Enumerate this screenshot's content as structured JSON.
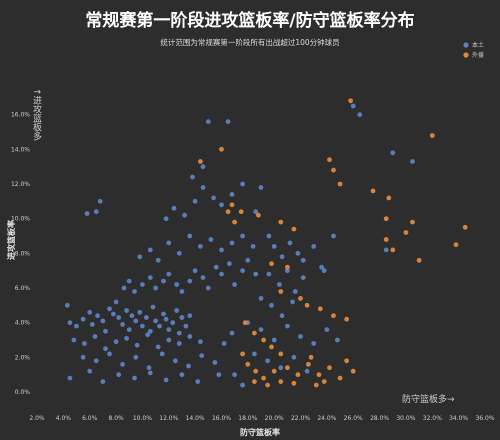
{
  "chart_data": {
    "type": "scatter",
    "title": "常规赛第一阶段进攻篮板率/防守篮板率分布",
    "subtitle": "统计范围为常规赛第一阶段所有出战超过100分钟球员",
    "xlabel": "防守篮板率",
    "ylabel": "进攻篮板率",
    "xlim": [
      0.02,
      0.36
    ],
    "ylim": [
      0,
      0.18
    ],
    "x_ticks": [
      "2.0%",
      "4.0%",
      "6.0%",
      "8.0%",
      "10.0%",
      "12.0%",
      "14.0%",
      "16.0%",
      "18.0%",
      "20.0%",
      "22.0%",
      "24.0%",
      "26.0%",
      "28.0%",
      "30.0%",
      "32.0%",
      "34.0%",
      "36.0%"
    ],
    "y_ticks": [
      "0.0%",
      "2.0%",
      "4.0%",
      "6.0%",
      "8.0%",
      "10.0%",
      "12.0%",
      "14.0%",
      "16.0%"
    ],
    "legend": {
      "position": "top-right"
    },
    "annotations": {
      "y_arrow": "↑进攻篮板多",
      "x_arrow": "防守篮板多→"
    },
    "series": [
      {
        "name": "本土",
        "color": "#5b82c0",
        "points": [
          [
            0.043,
            0.05
          ],
          [
            0.058,
            0.103
          ],
          [
            0.065,
            0.104
          ],
          [
            0.068,
            0.11
          ],
          [
            0.045,
            0.04
          ],
          [
            0.05,
            0.038
          ],
          [
            0.055,
            0.042
          ],
          [
            0.06,
            0.046
          ],
          [
            0.062,
            0.039
          ],
          [
            0.066,
            0.044
          ],
          [
            0.07,
            0.041
          ],
          [
            0.072,
            0.035
          ],
          [
            0.075,
            0.048
          ],
          [
            0.078,
            0.045
          ],
          [
            0.08,
            0.052
          ],
          [
            0.082,
            0.043
          ],
          [
            0.085,
            0.039
          ],
          [
            0.088,
            0.047
          ],
          [
            0.09,
            0.036
          ],
          [
            0.092,
            0.044
          ],
          [
            0.095,
            0.041
          ],
          [
            0.098,
            0.046
          ],
          [
            0.1,
            0.038
          ],
          [
            0.103,
            0.043
          ],
          [
            0.106,
            0.035
          ],
          [
            0.108,
            0.049
          ],
          [
            0.11,
            0.041
          ],
          [
            0.113,
            0.038
          ],
          [
            0.116,
            0.045
          ],
          [
            0.118,
            0.042
          ],
          [
            0.12,
            0.036
          ],
          [
            0.123,
            0.04
          ],
          [
            0.126,
            0.047
          ],
          [
            0.128,
            0.034
          ],
          [
            0.13,
            0.043
          ],
          [
            0.133,
            0.038
          ],
          [
            0.136,
            0.044
          ],
          [
            0.048,
            0.03
          ],
          [
            0.056,
            0.028
          ],
          [
            0.064,
            0.032
          ],
          [
            0.072,
            0.025
          ],
          [
            0.08,
            0.029
          ],
          [
            0.088,
            0.031
          ],
          [
            0.096,
            0.027
          ],
          [
            0.104,
            0.033
          ],
          [
            0.112,
            0.026
          ],
          [
            0.12,
            0.03
          ],
          [
            0.128,
            0.028
          ],
          [
            0.136,
            0.032
          ],
          [
            0.144,
            0.029
          ],
          [
            0.055,
            0.02
          ],
          [
            0.065,
            0.018
          ],
          [
            0.075,
            0.022
          ],
          [
            0.085,
            0.016
          ],
          [
            0.095,
            0.02
          ],
          [
            0.105,
            0.014
          ],
          [
            0.115,
            0.022
          ],
          [
            0.125,
            0.018
          ],
          [
            0.135,
            0.015
          ],
          [
            0.145,
            0.021
          ],
          [
            0.155,
            0.017
          ],
          [
            0.045,
            0.008
          ],
          [
            0.06,
            0.012
          ],
          [
            0.07,
            0.006
          ],
          [
            0.082,
            0.01
          ],
          [
            0.094,
            0.008
          ],
          [
            0.106,
            0.011
          ],
          [
            0.118,
            0.007
          ],
          [
            0.13,
            0.01
          ],
          [
            0.142,
            0.006
          ],
          [
            0.158,
            0.01
          ],
          [
            0.086,
            0.06
          ],
          [
            0.09,
            0.064
          ],
          [
            0.094,
            0.058
          ],
          [
            0.1,
            0.062
          ],
          [
            0.106,
            0.066
          ],
          [
            0.11,
            0.06
          ],
          [
            0.116,
            0.064
          ],
          [
            0.12,
            0.068
          ],
          [
            0.126,
            0.062
          ],
          [
            0.13,
            0.058
          ],
          [
            0.136,
            0.064
          ],
          [
            0.14,
            0.07
          ],
          [
            0.146,
            0.066
          ],
          [
            0.15,
            0.06
          ],
          [
            0.156,
            0.072
          ],
          [
            0.16,
            0.068
          ],
          [
            0.166,
            0.074
          ],
          [
            0.17,
            0.062
          ],
          [
            0.176,
            0.07
          ],
          [
            0.18,
            0.076
          ],
          [
            0.186,
            0.068
          ],
          [
            0.098,
            0.078
          ],
          [
            0.106,
            0.082
          ],
          [
            0.112,
            0.076
          ],
          [
            0.12,
            0.086
          ],
          [
            0.128,
            0.08
          ],
          [
            0.136,
            0.09
          ],
          [
            0.144,
            0.084
          ],
          [
            0.152,
            0.088
          ],
          [
            0.16,
            0.082
          ],
          [
            0.168,
            0.086
          ],
          [
            0.176,
            0.09
          ],
          [
            0.184,
            0.084
          ],
          [
            0.118,
            0.1
          ],
          [
            0.124,
            0.106
          ],
          [
            0.132,
            0.102
          ],
          [
            0.14,
            0.11
          ],
          [
            0.146,
            0.118
          ],
          [
            0.154,
            0.112
          ],
          [
            0.16,
            0.108
          ],
          [
            0.168,
            0.114
          ],
          [
            0.176,
            0.12
          ],
          [
            0.186,
            0.104
          ],
          [
            0.138,
            0.124
          ],
          [
            0.146,
            0.13
          ],
          [
            0.15,
            0.156
          ],
          [
            0.165,
            0.156
          ],
          [
            0.19,
            0.118
          ],
          [
            0.196,
            0.09
          ],
          [
            0.2,
            0.084
          ],
          [
            0.206,
            0.078
          ],
          [
            0.212,
            0.086
          ],
          [
            0.218,
            0.08
          ],
          [
            0.222,
            0.076
          ],
          [
            0.23,
            0.084
          ],
          [
            0.236,
            0.072
          ],
          [
            0.196,
            0.068
          ],
          [
            0.204,
            0.062
          ],
          [
            0.21,
            0.07
          ],
          [
            0.216,
            0.058
          ],
          [
            0.222,
            0.066
          ],
          [
            0.19,
            0.054
          ],
          [
            0.198,
            0.05
          ],
          [
            0.206,
            0.044
          ],
          [
            0.214,
            0.052
          ],
          [
            0.18,
            0.04
          ],
          [
            0.19,
            0.036
          ],
          [
            0.2,
            0.03
          ],
          [
            0.21,
            0.038
          ],
          [
            0.22,
            0.032
          ],
          [
            0.185,
            0.022
          ],
          [
            0.195,
            0.018
          ],
          [
            0.205,
            0.014
          ],
          [
            0.215,
            0.02
          ],
          [
            0.225,
            0.012
          ],
          [
            0.23,
            0.028
          ],
          [
            0.238,
            0.07
          ],
          [
            0.245,
            0.09
          ],
          [
            0.26,
            0.165
          ],
          [
            0.265,
            0.16
          ],
          [
            0.29,
            0.138
          ],
          [
            0.305,
            0.133
          ],
          [
            0.285,
            0.082
          ],
          [
            0.24,
            0.036
          ],
          [
            0.248,
            0.03
          ],
          [
            0.17,
            0.01
          ],
          [
            0.176,
            0.004
          ],
          [
            0.162,
            0.028
          ],
          [
            0.168,
            0.034
          ]
        ]
      },
      {
        "name": "外援",
        "color": "#e0883a",
        "points": [
          [
            0.258,
            0.168
          ],
          [
            0.32,
            0.148
          ],
          [
            0.242,
            0.134
          ],
          [
            0.245,
            0.128
          ],
          [
            0.25,
            0.12
          ],
          [
            0.275,
            0.116
          ],
          [
            0.287,
            0.112
          ],
          [
            0.285,
            0.1
          ],
          [
            0.305,
            0.098
          ],
          [
            0.3,
            0.092
          ],
          [
            0.285,
            0.088
          ],
          [
            0.345,
            0.095
          ],
          [
            0.338,
            0.085
          ],
          [
            0.29,
            0.082
          ],
          [
            0.31,
            0.076
          ],
          [
            0.168,
            0.108
          ],
          [
            0.175,
            0.104
          ],
          [
            0.144,
            0.133
          ],
          [
            0.16,
            0.14
          ],
          [
            0.165,
            0.104
          ],
          [
            0.17,
            0.098
          ],
          [
            0.188,
            0.102
          ],
          [
            0.205,
            0.098
          ],
          [
            0.215,
            0.094
          ],
          [
            0.198,
            0.074
          ],
          [
            0.21,
            0.072
          ],
          [
            0.205,
            0.058
          ],
          [
            0.22,
            0.054
          ],
          [
            0.225,
            0.05
          ],
          [
            0.235,
            0.048
          ],
          [
            0.245,
            0.044
          ],
          [
            0.255,
            0.042
          ],
          [
            0.178,
            0.04
          ],
          [
            0.185,
            0.034
          ],
          [
            0.192,
            0.03
          ],
          [
            0.198,
            0.026
          ],
          [
            0.205,
            0.022
          ],
          [
            0.176,
            0.022
          ],
          [
            0.18,
            0.016
          ],
          [
            0.186,
            0.012
          ],
          [
            0.192,
            0.008
          ],
          [
            0.2,
            0.012
          ],
          [
            0.21,
            0.014
          ],
          [
            0.218,
            0.01
          ],
          [
            0.226,
            0.016
          ],
          [
            0.234,
            0.01
          ],
          [
            0.242,
            0.014
          ],
          [
            0.25,
            0.008
          ],
          [
            0.255,
            0.018
          ],
          [
            0.26,
            0.012
          ],
          [
            0.185,
            0.006
          ],
          [
            0.195,
            0.004
          ],
          [
            0.205,
            0.006
          ],
          [
            0.215,
            0.005
          ],
          [
            0.232,
            0.004
          ],
          [
            0.238,
            0.006
          ],
          [
            0.228,
            0.02
          ]
        ]
      }
    ]
  }
}
